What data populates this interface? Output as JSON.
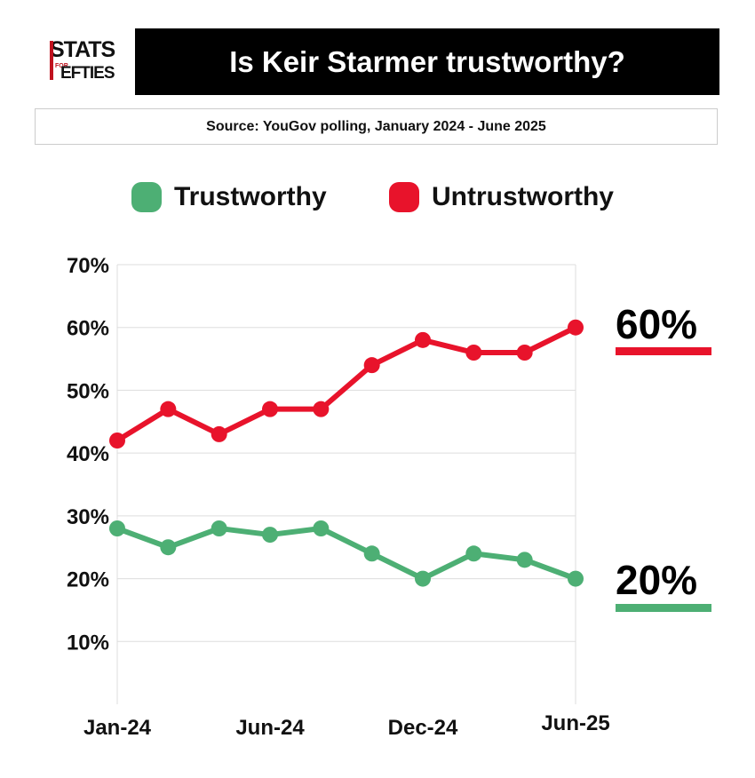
{
  "logo": {
    "top": "STATS",
    "small": "FOR",
    "bottom": "EFTIES"
  },
  "colors": {
    "trustworthy": "#4daf74",
    "untrustworthy": "#e8132b",
    "title_bg": "#000000"
  },
  "header": {
    "title": "Is Keir Starmer trustworthy?",
    "source": "Source: YouGov polling, January 2024 - June 2025"
  },
  "chart_data": {
    "type": "line",
    "title": "Is Keir Starmer trustworthy?",
    "x_tick_labels": [
      "Jan-24",
      "Jun-24",
      "Dec-24",
      "Jun-25"
    ],
    "x_tick_indices": [
      0,
      3,
      6,
      9
    ],
    "y_tick_labels": [
      "10%",
      "20%",
      "30%",
      "40%",
      "50%",
      "60%",
      "70%"
    ],
    "ylim": [
      0,
      70
    ],
    "grid": true,
    "legend_position": "top",
    "series": [
      {
        "name": "Trustworthy",
        "color": "#4daf74",
        "values": [
          28,
          25,
          28,
          27,
          28,
          24,
          20,
          24,
          23,
          20
        ],
        "end_label": "20%"
      },
      {
        "name": "Untrustworthy",
        "color": "#e8132b",
        "values": [
          42,
          47,
          43,
          47,
          47,
          54,
          58,
          56,
          56,
          60
        ],
        "end_label": "60%"
      }
    ]
  }
}
